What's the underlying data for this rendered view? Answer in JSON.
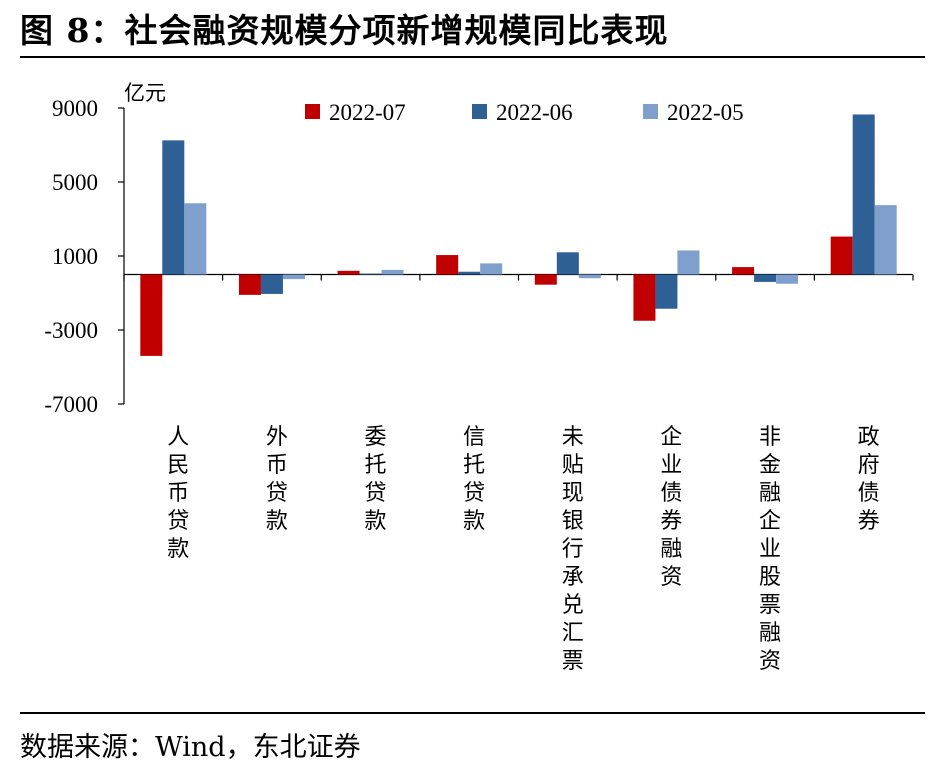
{
  "figure": {
    "title": "图  8：社会融资规模分项新增规模同比表现",
    "source": "数据来源：Wind，东北证券"
  },
  "chart_data": {
    "type": "bar",
    "unit": "亿元",
    "categories": [
      "人民币贷款",
      "外币贷款",
      "委托贷款",
      "信托贷款",
      "未贴现银行承兑汇票",
      "企业债券融资",
      "非金融企业股票融资",
      "政府债券"
    ],
    "series": [
      {
        "name": "2022-07",
        "color": "#c00000",
        "values": [
          -4400,
          -1100,
          200,
          1050,
          -550,
          -2500,
          400,
          2050
        ]
      },
      {
        "name": "2022-06",
        "color": "#2e5f95",
        "values": [
          7250,
          -1050,
          50,
          150,
          1200,
          -1850,
          -400,
          8650
        ]
      },
      {
        "name": "2022-05",
        "color": "#7f9fcd",
        "values": [
          3850,
          -250,
          250,
          600,
          -200,
          1300,
          -500,
          3750
        ]
      }
    ],
    "yticks": [
      "9000",
      "5000",
      "1000",
      "-3000",
      "-7000"
    ],
    "ylim": [
      -7000,
      9000
    ],
    "legend_position": "top-center",
    "grid": false
  }
}
